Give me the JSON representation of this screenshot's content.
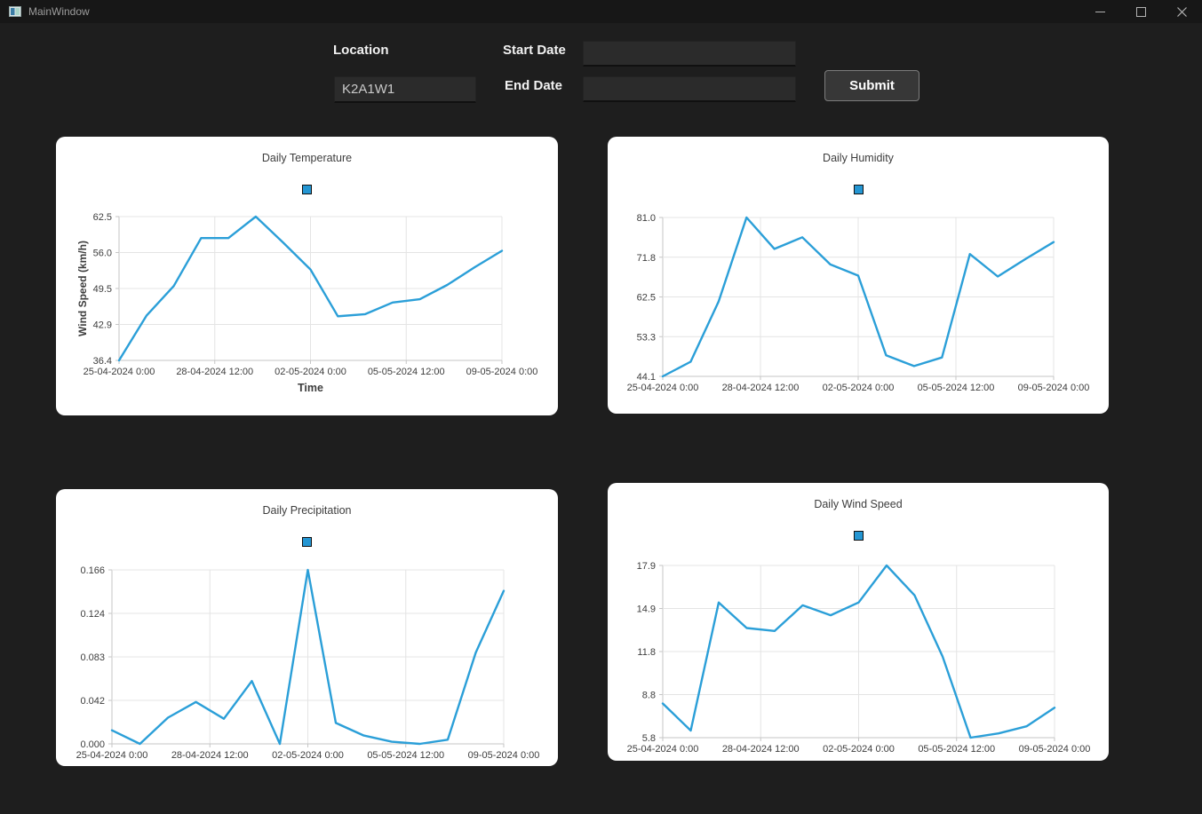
{
  "window": {
    "title": "MainWindow",
    "control_icons": [
      "minimize-icon",
      "maximize-icon",
      "close-icon"
    ]
  },
  "form": {
    "location_label": "Location",
    "location_value": "K2A1W1",
    "start_date_label": "Start Date",
    "start_date_value": "",
    "end_date_label": "End Date",
    "end_date_value": "",
    "submit_label": "Submit"
  },
  "colors": {
    "line": "#2b9fd8",
    "legend_marker": "#2496d3",
    "grid": "#e4e4e4",
    "axis": "#c6c6c6",
    "chart_text": "#3d3d3d",
    "card_bg": "#ffffff",
    "window_bg": "#1e1e1e",
    "titlebar_bg": "#171717"
  },
  "chart_data": [
    {
      "type": "line",
      "title": "Daily Temperature",
      "ylabel": "Wind Speed (km/h)",
      "xlabel": "Time",
      "legend": {
        "label": "",
        "marker": "blue-square"
      },
      "x_tick_labels": [
        "25-04-2024 0:00",
        "28-04-2024 12:00",
        "02-05-2024 0:00",
        "05-05-2024 12:00",
        "09-05-2024 0:00"
      ],
      "y_tick_labels": [
        "36.4",
        "42.9",
        "49.5",
        "56.0",
        "62.5"
      ],
      "ylim": [
        36.4,
        62.5
      ],
      "x_dates": [
        "25-04-2024",
        "26-04-2024",
        "27-04-2024",
        "28-04-2024",
        "29-04-2024",
        "30-04-2024",
        "01-05-2024",
        "02-05-2024",
        "03-05-2024",
        "04-05-2024",
        "05-05-2024",
        "06-05-2024",
        "07-05-2024",
        "08-05-2024",
        "09-05-2024"
      ],
      "values": [
        36.4,
        44.5,
        49.9,
        58.6,
        58.6,
        62.5,
        57.8,
        52.9,
        44.4,
        44.8,
        46.9,
        47.5,
        50.1,
        53.3,
        56.3
      ]
    },
    {
      "type": "line",
      "title": "Daily Humidity",
      "ylabel": "",
      "xlabel": "",
      "legend": {
        "label": "",
        "marker": "blue-square"
      },
      "x_tick_labels": [
        "25-04-2024 0:00",
        "28-04-2024 12:00",
        "02-05-2024 0:00",
        "05-05-2024 12:00",
        "09-05-2024 0:00"
      ],
      "y_tick_labels": [
        "44.1",
        "53.3",
        "62.5",
        "71.8",
        "81.0"
      ],
      "ylim": [
        44.1,
        81.0
      ],
      "x_dates": [
        "25-04-2024",
        "26-04-2024",
        "27-04-2024",
        "28-04-2024",
        "29-04-2024",
        "30-04-2024",
        "01-05-2024",
        "02-05-2024",
        "03-05-2024",
        "04-05-2024",
        "05-05-2024",
        "06-05-2024",
        "07-05-2024",
        "08-05-2024",
        "09-05-2024"
      ],
      "values": [
        44.1,
        47.5,
        61.5,
        81.0,
        73.7,
        76.4,
        70.1,
        67.5,
        49.0,
        46.5,
        48.5,
        72.5,
        67.3,
        71.4,
        75.3
      ]
    },
    {
      "type": "line",
      "title": "Daily Precipitation",
      "ylabel": "",
      "xlabel": "",
      "legend": {
        "label": "",
        "marker": "blue-square"
      },
      "x_tick_labels": [
        "25-04-2024 0:00",
        "28-04-2024 12:00",
        "02-05-2024 0:00",
        "05-05-2024 12:00",
        "09-05-2024 0:00"
      ],
      "y_tick_labels": [
        "0.000",
        "0.042",
        "0.083",
        "0.124",
        "0.166"
      ],
      "ylim": [
        0.0,
        0.166
      ],
      "x_dates": [
        "25-04-2024",
        "26-04-2024",
        "27-04-2024",
        "28-04-2024",
        "29-04-2024",
        "30-04-2024",
        "01-05-2024",
        "02-05-2024",
        "03-05-2024",
        "04-05-2024",
        "05-05-2024",
        "06-05-2024",
        "07-05-2024",
        "08-05-2024",
        "09-05-2024"
      ],
      "values": [
        0.013,
        0.0,
        0.025,
        0.04,
        0.024,
        0.06,
        0.0,
        0.166,
        0.02,
        0.008,
        0.002,
        0.0,
        0.004,
        0.087,
        0.146
      ]
    },
    {
      "type": "line",
      "title": "Daily Wind Speed",
      "ylabel": "",
      "xlabel": "",
      "legend": {
        "label": "",
        "marker": "blue-square"
      },
      "x_tick_labels": [
        "25-04-2024 0:00",
        "28-04-2024 12:00",
        "02-05-2024 0:00",
        "05-05-2024 12:00",
        "09-05-2024 0:00"
      ],
      "y_tick_labels": [
        "5.8",
        "8.8",
        "11.8",
        "14.9",
        "17.9"
      ],
      "ylim": [
        5.8,
        17.9
      ],
      "x_dates": [
        "25-04-2024",
        "26-04-2024",
        "27-04-2024",
        "28-04-2024",
        "29-04-2024",
        "30-04-2024",
        "01-05-2024",
        "02-05-2024",
        "03-05-2024",
        "04-05-2024",
        "05-05-2024",
        "06-05-2024",
        "07-05-2024",
        "08-05-2024",
        "09-05-2024"
      ],
      "values": [
        8.2,
        6.3,
        15.3,
        13.5,
        13.3,
        15.1,
        14.4,
        15.3,
        17.9,
        15.8,
        11.5,
        5.8,
        6.1,
        6.6,
        7.9
      ]
    }
  ]
}
